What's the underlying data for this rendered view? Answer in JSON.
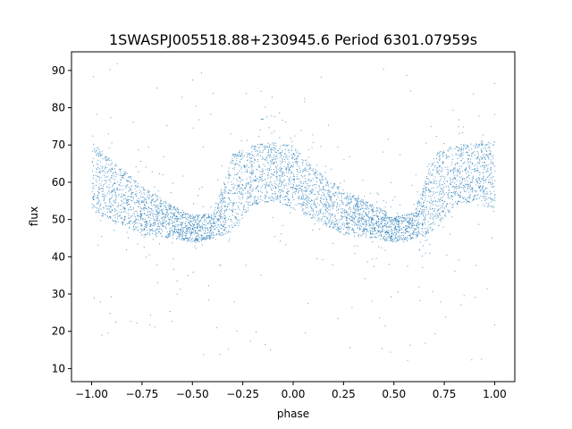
{
  "chart_data": {
    "type": "scatter",
    "title": "1SWASPJ005518.88+230945.6 Period 6301.07959s",
    "xlabel": "phase",
    "ylabel": "flux",
    "xlim": [
      -1.1,
      1.1
    ],
    "ylim": [
      6.5,
      95
    ],
    "x_ticks": [
      -1.0,
      -0.75,
      -0.5,
      -0.25,
      0.0,
      0.25,
      0.5,
      0.75,
      1.0
    ],
    "x_tick_labels": [
      "−1.00",
      "−0.75",
      "−0.50",
      "−0.25",
      "0.00",
      "0.25",
      "0.50",
      "0.75",
      "1.00"
    ],
    "y_ticks": [
      10,
      20,
      30,
      40,
      50,
      60,
      70,
      80,
      90
    ],
    "y_tick_labels": [
      "10",
      "20",
      "30",
      "40",
      "50",
      "60",
      "70",
      "80",
      "90"
    ],
    "grid": false,
    "series": [
      {
        "color": "#1f77b4",
        "description_points": {
          "phase": [
            -1.0,
            -0.9,
            -0.75,
            -0.6,
            -0.5,
            -0.4,
            -0.3,
            -0.2,
            -0.1,
            0.0,
            0.1,
            0.25,
            0.4,
            0.5,
            0.6,
            0.7,
            0.8,
            0.9,
            1.0
          ],
          "flux_center": [
            61,
            57,
            52,
            49,
            47,
            47,
            55,
            66,
            66,
            61,
            57,
            52,
            49,
            47,
            47,
            55,
            66,
            66,
            61
          ],
          "flux_upper": [
            71,
            66,
            59,
            54,
            51,
            52,
            68,
            70,
            71,
            70,
            64,
            58,
            54,
            51,
            52,
            68,
            70,
            71,
            71
          ],
          "flux_lower": [
            52,
            50,
            46,
            45,
            44,
            45,
            47,
            54,
            55,
            53,
            50,
            46,
            45,
            44,
            45,
            47,
            54,
            55,
            52
          ]
        }
      }
    ]
  }
}
